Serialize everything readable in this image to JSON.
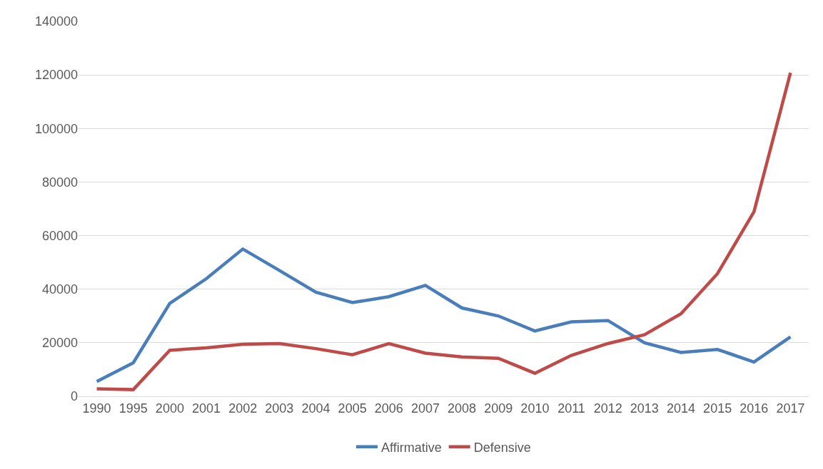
{
  "chart_data": {
    "type": "line",
    "categories": [
      "1990",
      "1995",
      "2000",
      "2001",
      "2002",
      "2003",
      "2004",
      "2005",
      "2006",
      "2007",
      "2008",
      "2009",
      "2010",
      "2011",
      "2012",
      "2013",
      "2014",
      "2015",
      "2016",
      "2017"
    ],
    "series": [
      {
        "name": "Affirmative",
        "color": "#4a7ebb",
        "values": [
          5500,
          12500,
          34700,
          43900,
          55000,
          47000,
          38900,
          35000,
          37200,
          41400,
          33000,
          30000,
          24400,
          27800,
          28300,
          20000,
          16400,
          17500,
          12800,
          22200
        ]
      },
      {
        "name": "Defensive",
        "color": "#be4b48",
        "values": [
          2800,
          2500,
          17200,
          18100,
          19400,
          19700,
          17800,
          15500,
          19700,
          16100,
          14700,
          14200,
          8600,
          15300,
          19700,
          23000,
          30800,
          45800,
          68900,
          120800
        ]
      }
    ],
    "ylim": [
      0,
      140000
    ],
    "yticks": [
      0,
      20000,
      40000,
      60000,
      80000,
      100000,
      120000,
      140000
    ],
    "grid": "y",
    "legend": "bottom",
    "marker": "none",
    "line_style": "solid"
  }
}
